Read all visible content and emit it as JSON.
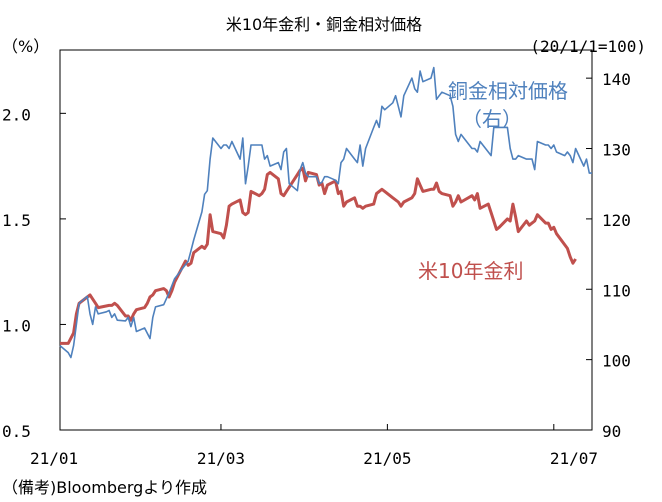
{
  "chart_data": {
    "type": "line",
    "title": "米10年金利・銅金相対価格",
    "left_axis_unit": "（%）",
    "right_axis_unit": "(20/1/1=100)",
    "source_note": "（備考)Bloombergより作成",
    "x_ticks": [
      "21/01",
      "21/03",
      "21/05",
      "21/07"
    ],
    "x_tick_dates": [
      "2021-01-01",
      "2021-03-01",
      "2021-05-01",
      "2021-07-01"
    ],
    "x_range": [
      "2021-01-01",
      "2021-07-15"
    ],
    "ylim_left": [
      0.5,
      2.3
    ],
    "ylim_right": [
      90,
      144
    ],
    "left_ticks": [
      0.5,
      1.0,
      1.5,
      2.0
    ],
    "left_tick_labels": [
      "0.5",
      "1.0",
      "1.5",
      "2.0"
    ],
    "right_ticks": [
      90,
      100,
      110,
      120,
      130,
      140
    ],
    "right_tick_labels": [
      "90",
      "100",
      "110",
      "120",
      "130",
      "140"
    ],
    "grid": false,
    "series": [
      {
        "name": "米10年金利",
        "axis": "left",
        "color": "#c0504d",
        "label_lines": [
          "米10年金利"
        ],
        "points": [
          [
            "2021-01-01",
            0.91
          ],
          [
            "2021-01-04",
            0.91
          ],
          [
            "2021-01-06",
            0.96
          ],
          [
            "2021-01-07",
            1.05
          ],
          [
            "2021-01-08",
            1.1
          ],
          [
            "2021-01-11",
            1.13
          ],
          [
            "2021-01-12",
            1.14
          ],
          [
            "2021-01-13",
            1.12
          ],
          [
            "2021-01-14",
            1.1
          ],
          [
            "2021-01-15",
            1.08
          ],
          [
            "2021-01-19",
            1.09
          ],
          [
            "2021-01-20",
            1.09
          ],
          [
            "2021-01-21",
            1.1
          ],
          [
            "2021-01-22",
            1.09
          ],
          [
            "2021-01-25",
            1.04
          ],
          [
            "2021-01-26",
            1.04
          ],
          [
            "2021-01-27",
            1.02
          ],
          [
            "2021-01-28",
            1.05
          ],
          [
            "2021-01-29",
            1.07
          ],
          [
            "2021-02-01",
            1.08
          ],
          [
            "2021-02-02",
            1.1
          ],
          [
            "2021-02-03",
            1.13
          ],
          [
            "2021-02-04",
            1.14
          ],
          [
            "2021-02-05",
            1.16
          ],
          [
            "2021-02-08",
            1.17
          ],
          [
            "2021-02-09",
            1.16
          ],
          [
            "2021-02-10",
            1.13
          ],
          [
            "2021-02-11",
            1.16
          ],
          [
            "2021-02-12",
            1.2
          ],
          [
            "2021-02-16",
            1.3
          ],
          [
            "2021-02-17",
            1.28
          ],
          [
            "2021-02-18",
            1.29
          ],
          [
            "2021-02-19",
            1.34
          ],
          [
            "2021-02-22",
            1.37
          ],
          [
            "2021-02-23",
            1.36
          ],
          [
            "2021-02-24",
            1.38
          ],
          [
            "2021-02-25",
            1.52
          ],
          [
            "2021-02-26",
            1.44
          ],
          [
            "2021-03-01",
            1.43
          ],
          [
            "2021-03-02",
            1.41
          ],
          [
            "2021-03-03",
            1.47
          ],
          [
            "2021-03-04",
            1.56
          ],
          [
            "2021-03-05",
            1.57
          ],
          [
            "2021-03-08",
            1.59
          ],
          [
            "2021-03-09",
            1.53
          ],
          [
            "2021-03-10",
            1.52
          ],
          [
            "2021-03-11",
            1.53
          ],
          [
            "2021-03-12",
            1.63
          ],
          [
            "2021-03-15",
            1.61
          ],
          [
            "2021-03-16",
            1.62
          ],
          [
            "2021-03-17",
            1.64
          ],
          [
            "2021-03-18",
            1.71
          ],
          [
            "2021-03-19",
            1.72
          ],
          [
            "2021-03-22",
            1.69
          ],
          [
            "2021-03-23",
            1.62
          ],
          [
            "2021-03-24",
            1.61
          ],
          [
            "2021-03-25",
            1.63
          ],
          [
            "2021-03-26",
            1.65
          ],
          [
            "2021-03-29",
            1.71
          ],
          [
            "2021-03-30",
            1.73
          ],
          [
            "2021-03-31",
            1.74
          ],
          [
            "2021-04-01",
            1.68
          ],
          [
            "2021-04-02",
            1.72
          ],
          [
            "2021-04-05",
            1.71
          ],
          [
            "2021-04-06",
            1.66
          ],
          [
            "2021-04-07",
            1.67
          ],
          [
            "2021-04-08",
            1.62
          ],
          [
            "2021-04-09",
            1.66
          ],
          [
            "2021-04-12",
            1.68
          ],
          [
            "2021-04-13",
            1.62
          ],
          [
            "2021-04-14",
            1.63
          ],
          [
            "2021-04-15",
            1.56
          ],
          [
            "2021-04-16",
            1.58
          ],
          [
            "2021-04-19",
            1.6
          ],
          [
            "2021-04-20",
            1.56
          ],
          [
            "2021-04-21",
            1.56
          ],
          [
            "2021-04-22",
            1.55
          ],
          [
            "2021-04-23",
            1.56
          ],
          [
            "2021-04-26",
            1.57
          ],
          [
            "2021-04-27",
            1.62
          ],
          [
            "2021-04-28",
            1.63
          ],
          [
            "2021-04-29",
            1.64
          ],
          [
            "2021-04-30",
            1.63
          ],
          [
            "2021-05-03",
            1.6
          ],
          [
            "2021-05-04",
            1.59
          ],
          [
            "2021-05-05",
            1.58
          ],
          [
            "2021-05-06",
            1.56
          ],
          [
            "2021-05-07",
            1.58
          ],
          [
            "2021-05-10",
            1.6
          ],
          [
            "2021-05-11",
            1.62
          ],
          [
            "2021-05-12",
            1.69
          ],
          [
            "2021-05-13",
            1.66
          ],
          [
            "2021-05-14",
            1.63
          ],
          [
            "2021-05-17",
            1.64
          ],
          [
            "2021-05-18",
            1.64
          ],
          [
            "2021-05-19",
            1.67
          ],
          [
            "2021-05-20",
            1.63
          ],
          [
            "2021-05-21",
            1.62
          ],
          [
            "2021-05-24",
            1.61
          ],
          [
            "2021-05-25",
            1.56
          ],
          [
            "2021-05-26",
            1.58
          ],
          [
            "2021-05-27",
            1.61
          ],
          [
            "2021-05-28",
            1.58
          ],
          [
            "2021-06-01",
            1.61
          ],
          [
            "2021-06-02",
            1.59
          ],
          [
            "2021-06-03",
            1.62
          ],
          [
            "2021-06-04",
            1.55
          ],
          [
            "2021-06-07",
            1.57
          ],
          [
            "2021-06-08",
            1.53
          ],
          [
            "2021-06-09",
            1.49
          ],
          [
            "2021-06-10",
            1.45
          ],
          [
            "2021-06-11",
            1.46
          ],
          [
            "2021-06-14",
            1.5
          ],
          [
            "2021-06-15",
            1.49
          ],
          [
            "2021-06-16",
            1.57
          ],
          [
            "2021-06-17",
            1.51
          ],
          [
            "2021-06-18",
            1.44
          ],
          [
            "2021-06-21",
            1.49
          ],
          [
            "2021-06-22",
            1.47
          ],
          [
            "2021-06-23",
            1.48
          ],
          [
            "2021-06-24",
            1.49
          ],
          [
            "2021-06-25",
            1.52
          ],
          [
            "2021-06-28",
            1.48
          ],
          [
            "2021-06-29",
            1.48
          ],
          [
            "2021-06-30",
            1.45
          ],
          [
            "2021-07-01",
            1.46
          ],
          [
            "2021-07-02",
            1.43
          ],
          [
            "2021-07-06",
            1.36
          ],
          [
            "2021-07-07",
            1.32
          ],
          [
            "2021-07-08",
            1.29
          ],
          [
            "2021-07-09",
            1.31
          ]
        ]
      },
      {
        "name": "銅金相対価格（右）",
        "axis": "right",
        "color": "#4f81bd",
        "label_lines": [
          "銅金相対価格",
          "（右）"
        ],
        "points": [
          [
            "2021-01-01",
            102.0
          ],
          [
            "2021-01-04",
            101.0
          ],
          [
            "2021-01-05",
            100.3
          ],
          [
            "2021-01-06",
            102.0
          ],
          [
            "2021-01-07",
            105.0
          ],
          [
            "2021-01-08",
            108.0
          ],
          [
            "2021-01-11",
            109.0
          ],
          [
            "2021-01-12",
            106.5
          ],
          [
            "2021-01-13",
            105.0
          ],
          [
            "2021-01-14",
            107.5
          ],
          [
            "2021-01-15",
            106.5
          ],
          [
            "2021-01-18",
            106.8
          ],
          [
            "2021-01-19",
            107.0
          ],
          [
            "2021-01-20",
            106.0
          ],
          [
            "2021-01-21",
            106.5
          ],
          [
            "2021-01-22",
            105.6
          ],
          [
            "2021-01-25",
            105.5
          ],
          [
            "2021-01-26",
            106.0
          ],
          [
            "2021-01-27",
            104.7
          ],
          [
            "2021-01-28",
            106.0
          ],
          [
            "2021-01-29",
            104.0
          ],
          [
            "2021-02-01",
            104.5
          ],
          [
            "2021-02-03",
            103.0
          ],
          [
            "2021-02-04",
            106.0
          ],
          [
            "2021-02-05",
            107.5
          ],
          [
            "2021-02-08",
            107.8
          ],
          [
            "2021-02-10",
            109.5
          ],
          [
            "2021-02-12",
            111.5
          ],
          [
            "2021-02-15",
            113.0
          ],
          [
            "2021-02-16",
            113.5
          ],
          [
            "2021-02-17",
            114.0
          ],
          [
            "2021-02-18",
            115.5
          ],
          [
            "2021-02-19",
            117.0
          ],
          [
            "2021-02-22",
            121.0
          ],
          [
            "2021-02-23",
            123.5
          ],
          [
            "2021-02-24",
            124.0
          ],
          [
            "2021-02-25",
            128.5
          ],
          [
            "2021-02-26",
            131.5
          ],
          [
            "2021-03-01",
            130.0
          ],
          [
            "2021-03-02",
            130.5
          ],
          [
            "2021-03-03",
            130.5
          ],
          [
            "2021-03-04",
            130.0
          ],
          [
            "2021-03-05",
            131.0
          ],
          [
            "2021-03-08",
            128.5
          ],
          [
            "2021-03-09",
            131.5
          ],
          [
            "2021-03-10",
            125.0
          ],
          [
            "2021-03-11",
            127.5
          ],
          [
            "2021-03-12",
            130.5
          ],
          [
            "2021-03-15",
            130.5
          ],
          [
            "2021-03-16",
            130.5
          ],
          [
            "2021-03-17",
            128.5
          ],
          [
            "2021-03-18",
            129.0
          ],
          [
            "2021-03-19",
            127.5
          ],
          [
            "2021-03-22",
            128.0
          ],
          [
            "2021-03-23",
            127.0
          ],
          [
            "2021-03-24",
            129.5
          ],
          [
            "2021-03-25",
            130.0
          ],
          [
            "2021-03-26",
            125.0
          ],
          [
            "2021-03-29",
            124.0
          ],
          [
            "2021-03-30",
            127.0
          ],
          [
            "2021-03-31",
            128.0
          ],
          [
            "2021-04-01",
            126.5
          ],
          [
            "2021-04-02",
            126.0
          ],
          [
            "2021-04-05",
            126.0
          ],
          [
            "2021-04-06",
            125.0
          ],
          [
            "2021-04-07",
            125.2
          ],
          [
            "2021-04-08",
            126.0
          ],
          [
            "2021-04-09",
            126.0
          ],
          [
            "2021-04-12",
            125.5
          ],
          [
            "2021-04-13",
            125.0
          ],
          [
            "2021-04-14",
            128.0
          ],
          [
            "2021-04-15",
            128.5
          ],
          [
            "2021-04-16",
            130.0
          ],
          [
            "2021-04-19",
            128.5
          ],
          [
            "2021-04-20",
            128.0
          ],
          [
            "2021-04-21",
            130.5
          ],
          [
            "2021-04-22",
            127.5
          ],
          [
            "2021-04-23",
            130.0
          ],
          [
            "2021-04-26",
            133.0
          ],
          [
            "2021-04-27",
            134.0
          ],
          [
            "2021-04-28",
            133.0
          ],
          [
            "2021-04-29",
            136.0
          ],
          [
            "2021-04-30",
            135.5
          ],
          [
            "2021-05-03",
            136.5
          ],
          [
            "2021-05-04",
            137.5
          ],
          [
            "2021-05-05",
            136.0
          ],
          [
            "2021-05-06",
            134.5
          ],
          [
            "2021-05-07",
            137.5
          ],
          [
            "2021-05-10",
            140.0
          ],
          [
            "2021-05-11",
            138.5
          ],
          [
            "2021-05-12",
            138.0
          ],
          [
            "2021-05-13",
            141.0
          ],
          [
            "2021-05-14",
            139.5
          ],
          [
            "2021-05-17",
            140.0
          ],
          [
            "2021-05-18",
            141.5
          ],
          [
            "2021-05-19",
            137.0
          ],
          [
            "2021-05-20",
            137.5
          ],
          [
            "2021-05-21",
            138.0
          ],
          [
            "2021-05-24",
            137.5
          ],
          [
            "2021-05-25",
            136.0
          ],
          [
            "2021-05-26",
            132.0
          ],
          [
            "2021-05-27",
            131.0
          ],
          [
            "2021-05-28",
            132.0
          ],
          [
            "2021-06-01",
            130.0
          ],
          [
            "2021-06-02",
            130.0
          ],
          [
            "2021-06-03",
            129.5
          ],
          [
            "2021-06-04",
            131.0
          ],
          [
            "2021-06-07",
            129.5
          ],
          [
            "2021-06-08",
            129.0
          ],
          [
            "2021-06-09",
            133.0
          ],
          [
            "2021-06-10",
            133.0
          ],
          [
            "2021-06-11",
            133.0
          ],
          [
            "2021-06-14",
            133.0
          ],
          [
            "2021-06-15",
            130.0
          ],
          [
            "2021-06-16",
            128.5
          ],
          [
            "2021-06-17",
            128.5
          ],
          [
            "2021-06-18",
            129.0
          ],
          [
            "2021-06-21",
            128.5
          ],
          [
            "2021-06-22",
            128.5
          ],
          [
            "2021-06-23",
            128.5
          ],
          [
            "2021-06-24",
            127.0
          ],
          [
            "2021-06-25",
            131.0
          ],
          [
            "2021-06-28",
            130.5
          ],
          [
            "2021-06-29",
            130.5
          ],
          [
            "2021-06-30",
            130.0
          ],
          [
            "2021-07-01",
            130.5
          ],
          [
            "2021-07-02",
            129.5
          ],
          [
            "2021-07-05",
            129.0
          ],
          [
            "2021-07-06",
            129.5
          ],
          [
            "2021-07-07",
            129.0
          ],
          [
            "2021-07-08",
            128.0
          ],
          [
            "2021-07-09",
            130.0
          ],
          [
            "2021-07-12",
            127.5
          ],
          [
            "2021-07-13",
            128.5
          ],
          [
            "2021-07-14",
            126.5
          ],
          [
            "2021-07-15",
            126.5
          ]
        ]
      }
    ]
  }
}
